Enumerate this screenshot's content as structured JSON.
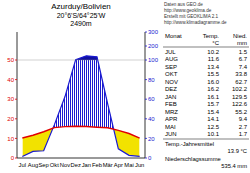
{
  "chart_data": {
    "type": "climate",
    "title": "Azurduy/Bolivien",
    "subtitle": [
      "20°6'S/64°25'W",
      "2490m"
    ],
    "credits": [
      "Daten aus GEO.de",
      "http://www.geoklima.de",
      "Erstellt mit GEOKLIMA 2.1",
      "http://www.klimadiagramme.de"
    ],
    "categories": [
      "Jul",
      "Aug",
      "Sep",
      "Okt",
      "Nov",
      "Dez",
      "Jan",
      "Feb",
      "Mär",
      "Apr",
      "Mai",
      "Jun"
    ],
    "series": [
      {
        "name": "Temp.",
        "unit": "°C",
        "color": "#e00000",
        "values": [
          10.2,
          11.6,
          13.4,
          15.5,
          16.0,
          16.2,
          16.1,
          15.7,
          15.4,
          14.1,
          12.5,
          10.1
        ],
        "value_labels": [
          "10.2",
          "11.6",
          "13.4",
          "15.5",
          "16.0",
          "16.2",
          "16.1",
          "15.7",
          "15.4",
          "14.1",
          "12.5",
          "10.1"
        ]
      },
      {
        "name": "Nied.",
        "unit": "mm",
        "color": "#1a1ad0",
        "axis": "y2",
        "values": [
          1.5,
          6.7,
          7.4,
          33.8,
          62.7,
          102.2,
          129.5,
          122.6,
          55.2,
          9.4,
          2.7,
          1.7
        ],
        "value_labels": [
          "1.5",
          "6.7",
          "7.4",
          "33.8",
          "62.7",
          "102.2",
          "129.5",
          "122.6",
          "55.2",
          "9.4",
          "2.7",
          "1.7"
        ]
      }
    ],
    "ylim": [
      0,
      50
    ],
    "yticks": [
      0,
      10,
      20,
      30,
      40,
      50
    ],
    "y2lim": [
      0,
      300
    ],
    "y2ticks": [
      0,
      20,
      40,
      60,
      80,
      100,
      200,
      300
    ],
    "table": {
      "month_header": "Monat",
      "months": [
        "JUL",
        "AUG",
        "SEP",
        "OKT",
        "NOV",
        "DEZ",
        "JAN",
        "FEB",
        "MRZ",
        "APR",
        "MAI",
        "JUN"
      ]
    },
    "annual_mean": {
      "label": "Temp.-Jahresmittel",
      "value": 13.9,
      "value_label": "13.9 °C"
    },
    "annual_total": {
      "label": "Niederschlagssumme",
      "value": 535.4,
      "value_label": "535.4 mm"
    }
  }
}
